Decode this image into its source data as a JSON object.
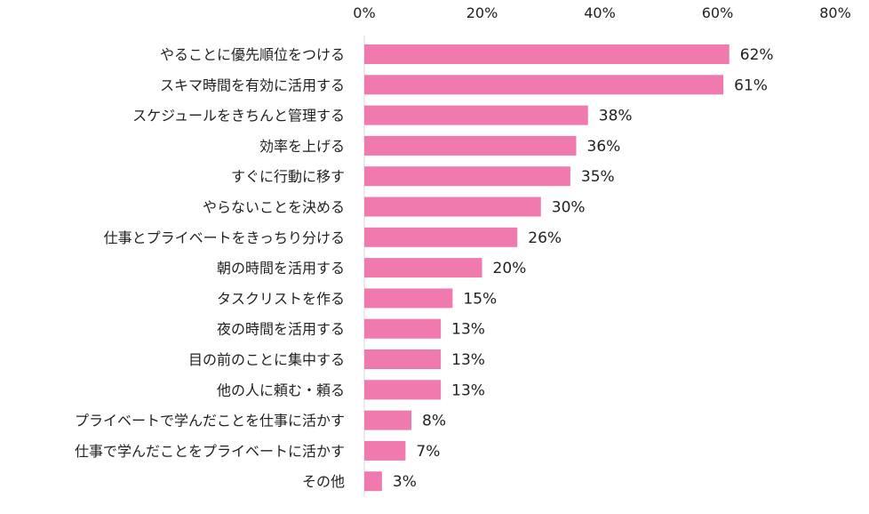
{
  "chart_data": {
    "type": "bar",
    "orientation": "horizontal",
    "categories": [
      "やることに優先順位をつける",
      "スキマ時間を有効に活用する",
      "スケジュールをきちんと管理する",
      "効率を上げる",
      "すぐに行動に移す",
      "やらないことを決める",
      "仕事とプライベートをきっちり分ける",
      "朝の時間を活用する",
      "タスクリストを作る",
      "夜の時間を活用する",
      "目の前のことに集中する",
      "他の人に頼む・頼る",
      "プライベートで学んだことを仕事に活かす",
      "仕事で学んだことをプライベートに活かす",
      "その他"
    ],
    "values": [
      62,
      61,
      38,
      36,
      35,
      30,
      26,
      20,
      15,
      13,
      13,
      13,
      8,
      7,
      3
    ],
    "data_labels": [
      "62%",
      "61%",
      "38%",
      "36%",
      "35%",
      "30%",
      "26%",
      "20%",
      "15%",
      "13%",
      "13%",
      "13%",
      "8%",
      "7%",
      "3%"
    ],
    "xlim": [
      0,
      80
    ],
    "ticks": [
      0,
      20,
      40,
      60,
      80
    ],
    "tick_labels": [
      "0%",
      "20%",
      "40%",
      "60%",
      "80%"
    ],
    "axis_position": "top",
    "grid": false,
    "legend": "none",
    "bar_color": "#f079ad"
  }
}
